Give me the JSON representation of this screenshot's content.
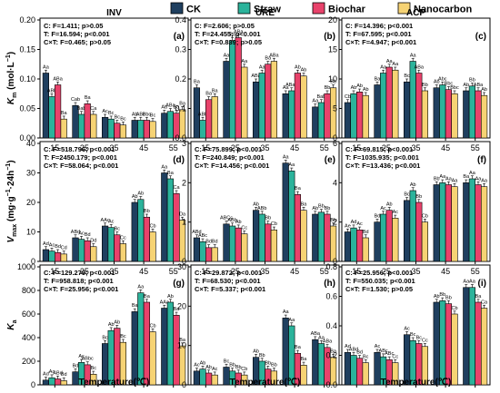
{
  "legend": [
    {
      "label": "CK",
      "color": "#1f3f5f"
    },
    {
      "label": "Straw",
      "color": "#2bb39b"
    },
    {
      "label": "Biochar",
      "color": "#e8426b"
    },
    {
      "label": "Nanocarbon",
      "color": "#f6d374"
    }
  ],
  "x_axis_title": "Temperature(℃)",
  "row_ylabels": [
    {
      "main": "K",
      "sub": "m",
      "rest": " (mol·L",
      "sup": "−1",
      "end": ")"
    },
    {
      "main": "V",
      "sub": "max",
      "rest": " (mg·g",
      "sup": "−1",
      "mid": "·24h",
      "sup2": "−1",
      "end": ")"
    },
    {
      "main": "K",
      "sub": "a",
      "rest": "",
      "sup": "",
      "end": ""
    }
  ],
  "chart_data": [
    {
      "type": "bar",
      "panel": "(a)",
      "title": "INV",
      "row": 0,
      "col": 0,
      "categories": [
        "15",
        "25",
        "35",
        "45",
        "55"
      ],
      "ylim": [
        0,
        0.2
      ],
      "yticks": [
        0.0,
        0.05,
        0.1,
        0.15,
        0.2
      ],
      "ytick_labels": [
        "0.00",
        "0.05",
        "0.10",
        "0.15",
        "0.20"
      ],
      "stats": [
        "C: F=1.411; p>0.05",
        "T: F=16.594; p<0.001",
        "C×T: F=0.465; p>0.05"
      ],
      "series": [
        {
          "name": "CK",
          "values": [
            0.11,
            0.055,
            0.035,
            0.03,
            0.042
          ]
        },
        {
          "name": "Straw",
          "values": [
            0.07,
            0.04,
            0.032,
            0.03,
            0.045
          ]
        },
        {
          "name": "Biochar",
          "values": [
            0.09,
            0.058,
            0.025,
            0.03,
            0.042
          ]
        },
        {
          "name": "Nanocarbon",
          "values": [
            0.032,
            0.04,
            0.022,
            0.028,
            0.048
          ]
        }
      ],
      "labels": [
        [
          "Aa",
          "Cab",
          "Ac",
          "Ab",
          "Ab"
        ],
        [
          "ABb",
          "Bab",
          "Bc",
          "ABc",
          "ABa"
        ],
        [
          "ABa",
          "Ba",
          "Bc",
          "Bbc",
          "Ba"
        ],
        [
          "Ba",
          "Ca",
          "Bc",
          "Bc",
          "Ba"
        ]
      ]
    },
    {
      "type": "bar",
      "panel": "(b)",
      "title": "URE",
      "row": 0,
      "col": 1,
      "categories": [
        "15",
        "25",
        "35",
        "45",
        "55"
      ],
      "ylim": [
        0,
        0.4
      ],
      "yticks": [
        0.0,
        0.1,
        0.2,
        0.3,
        0.4
      ],
      "ytick_labels": [
        "0.0",
        "0.1",
        "0.2",
        "0.3",
        "0.4"
      ],
      "stats": [
        "C: F=2.606; p>0.05",
        "T: F=24.455; p<0.001",
        "C×T: F=0.839; p>0.05"
      ],
      "series": [
        {
          "name": "CK",
          "values": [
            0.17,
            0.26,
            0.19,
            0.15,
            0.105
          ]
        },
        {
          "name": "Straw",
          "values": [
            0.06,
            0.33,
            0.22,
            0.16,
            0.12
          ]
        },
        {
          "name": "Biochar",
          "values": [
            0.13,
            0.34,
            0.25,
            0.22,
            0.15
          ]
        },
        {
          "name": "Nanocarbon",
          "values": [
            0.14,
            0.24,
            0.26,
            0.21,
            0.17
          ]
        }
      ],
      "labels": [
        [
          "Ba",
          "Aa",
          "ABa",
          "Aa",
          "Aa"
        ],
        [
          "ABb",
          "Ba",
          "Aa",
          "ABab",
          "Bab"
        ],
        [
          "Ba",
          "ABa",
          "Ba",
          "Ab",
          "Bb"
        ],
        [
          "Ba",
          "Aa",
          "ABa",
          "Ab",
          "Bb"
        ]
      ]
    },
    {
      "type": "bar",
      "panel": "(c)",
      "title": "ACP",
      "row": 0,
      "col": 2,
      "categories": [
        "15",
        "25",
        "35",
        "45",
        "55"
      ],
      "ylim": [
        0,
        20
      ],
      "yticks": [
        0,
        5,
        10,
        15,
        20
      ],
      "ytick_labels": [
        "0",
        "5",
        "10",
        "15",
        "20"
      ],
      "stats": [
        "C: F=14.396; p<0.001",
        "T: F=67.595; p<0.001",
        "C×T: F=4.947; p<0.001"
      ],
      "series": [
        {
          "name": "CK",
          "values": [
            6.0,
            9.0,
            9.5,
            8.5,
            8.0
          ]
        },
        {
          "name": "Straw",
          "values": [
            7.5,
            11.0,
            13.0,
            9.0,
            8.8
          ]
        },
        {
          "name": "Biochar",
          "values": [
            7.8,
            12.0,
            11.0,
            8.2,
            8.0
          ]
        },
        {
          "name": "Nanocarbon",
          "values": [
            7.2,
            11.5,
            8.0,
            7.5,
            7.2
          ]
        }
      ],
      "labels": [
        [
          "Cb",
          "Ba",
          "Bc",
          "Ab",
          "Ab"
        ],
        [
          "Ab",
          "Aa",
          "Aa",
          "Abc",
          "Bb"
        ],
        [
          "Ab",
          "Aa",
          "ABa",
          "Bbc",
          "ABa"
        ],
        [
          "Ab",
          "Aa",
          "Bb",
          "Bbc",
          "Ab"
        ]
      ]
    },
    {
      "type": "bar",
      "panel": "(d)",
      "title": "",
      "row": 1,
      "col": 0,
      "categories": [
        "15",
        "25",
        "35",
        "45",
        "55"
      ],
      "ylim": [
        0,
        40
      ],
      "yticks": [
        0,
        10,
        20,
        30,
        40
      ],
      "ytick_labels": [
        "0",
        "10",
        "20",
        "30",
        "40"
      ],
      "stats": [
        "C: F=518.796; p<0.001",
        "T: F=2450.179; p<0.001",
        "C×T: F=58.064; p<0.001"
      ],
      "series": [
        {
          "name": "CK",
          "values": [
            4.0,
            8.0,
            12.0,
            20.0,
            30.0
          ]
        },
        {
          "name": "Straw",
          "values": [
            3.5,
            7.5,
            11.5,
            21.0,
            28.0
          ]
        },
        {
          "name": "Biochar",
          "values": [
            3.0,
            7.0,
            9.0,
            15.0,
            23.0
          ]
        },
        {
          "name": "Nanocarbon",
          "values": [
            2.5,
            5.0,
            6.0,
            10.0,
            14.0
          ]
        }
      ],
      "labels": [
        [
          "Ad",
          "ABd",
          "AAc",
          "Ab",
          "Aa"
        ],
        [
          "Ac",
          "Ac",
          "Ac",
          "Ab",
          "Ba"
        ],
        [
          "Bd",
          "Bd",
          "Bc",
          "Bb",
          "Ca"
        ],
        [
          "Cd",
          "Dd",
          "Cc",
          "Cb",
          "Da"
        ]
      ]
    },
    {
      "type": "bar",
      "panel": "(e)",
      "title": "",
      "row": 1,
      "col": 1,
      "categories": [
        "15",
        "25",
        "35",
        "45",
        "55"
      ],
      "ylim": [
        0,
        3
      ],
      "yticks": [
        0,
        1,
        2,
        3
      ],
      "ytick_labels": [
        "0",
        "1",
        "2",
        "3"
      ],
      "stats": [
        "C: F=75.899; p<0.001",
        "T: F=240.849; p<0.001",
        "C×T: F=14.456; p<0.001"
      ],
      "series": [
        {
          "name": "CK",
          "values": [
            0.6,
            0.95,
            1.3,
            2.5,
            1.2
          ]
        },
        {
          "name": "Straw",
          "values": [
            0.5,
            0.9,
            1.2,
            2.3,
            1.25
          ]
        },
        {
          "name": "Biochar",
          "values": [
            0.35,
            0.85,
            0.95,
            1.7,
            1.2
          ]
        },
        {
          "name": "Nanocarbon",
          "values": [
            0.35,
            0.7,
            0.8,
            1.3,
            0.9
          ]
        }
      ],
      "labels": [
        [
          "ABd",
          "ABCc",
          "Ab",
          "Aa",
          "Ab"
        ],
        [
          "ABc",
          "ABb",
          "ABb",
          "Aa",
          "Bb"
        ],
        [
          "Bd",
          "Ab",
          "Bb",
          "Ba",
          "Bb"
        ],
        [
          "Bd",
          "Cc",
          "Cb",
          "Ba",
          "Bb"
        ]
      ]
    },
    {
      "type": "bar",
      "panel": "(f)",
      "title": "",
      "row": 1,
      "col": 2,
      "categories": [
        "15",
        "25",
        "35",
        "45",
        "55"
      ],
      "ylim": [
        0,
        6
      ],
      "yticks": [
        0,
        2,
        4,
        6
      ],
      "ytick_labels": [
        "0",
        "2",
        "4",
        "6"
      ],
      "stats": [
        "C: F=69.815; p<0.001",
        "T: F=1035.935; p<0.001",
        "C×T: F=13.436; p<0.001"
      ],
      "series": [
        {
          "name": "CK",
          "values": [
            1.5,
            2.0,
            3.1,
            3.9,
            4.0
          ]
        },
        {
          "name": "Straw",
          "values": [
            1.7,
            2.4,
            3.6,
            4.0,
            4.2
          ]
        },
        {
          "name": "Biochar",
          "values": [
            1.6,
            2.6,
            3.0,
            3.9,
            3.9
          ]
        },
        {
          "name": "Nanocarbon",
          "values": [
            1.2,
            2.2,
            2.0,
            3.8,
            3.8
          ]
        }
      ],
      "labels": [
        [
          "Ae",
          "Bd",
          "Bc",
          "Bb",
          "Ba"
        ],
        [
          "Ad",
          "Ac",
          "Ab",
          "Aa",
          "Aa"
        ],
        [
          "Ac",
          "Ab",
          "Bb",
          "Aa",
          "Aa"
        ],
        [
          "Bd",
          "Ac",
          "Cb",
          "Aa",
          "Aa"
        ]
      ]
    },
    {
      "type": "bar",
      "panel": "(g)",
      "title": "",
      "row": 2,
      "col": 0,
      "categories": [
        "15",
        "25",
        "35",
        "45",
        "55"
      ],
      "ylim": [
        0,
        1000
      ],
      "yticks": [
        0,
        200,
        400,
        600,
        800,
        1000
      ],
      "ytick_labels": [
        "0",
        "200",
        "400",
        "600",
        "800",
        "1000"
      ],
      "stats": [
        "C: F=129.279; p<0.001",
        "T: F=958.818; p<0.001",
        "C×T: F=25.956; p<0.001"
      ],
      "series": [
        {
          "name": "CK",
          "values": [
            40,
            110,
            350,
            620,
            650
          ]
        },
        {
          "name": "Straw",
          "values": [
            60,
            190,
            460,
            780,
            700
          ]
        },
        {
          "name": "Biochar",
          "values": [
            50,
            170,
            480,
            700,
            590
          ]
        },
        {
          "name": "Nanocarbon",
          "values": [
            35,
            90,
            360,
            450,
            330
          ]
        }
      ],
      "labels": [
        [
          "Ad",
          "Bd",
          "Bc",
          "Ba",
          "AAa"
        ],
        [
          "Ac",
          "Ac",
          "Ab",
          "Aa",
          "Ab"
        ],
        [
          "ABd",
          "ABbc",
          "Ab",
          "Ba",
          "Ba"
        ],
        [
          "Bd",
          "Bc",
          "Bc",
          "Cb",
          "Ba"
        ]
      ]
    },
    {
      "type": "bar",
      "panel": "(h)",
      "title": "",
      "row": 2,
      "col": 1,
      "categories": [
        "15",
        "25",
        "35",
        "45",
        "55"
      ],
      "ylim": [
        0,
        30
      ],
      "yticks": [
        0,
        10,
        20,
        30
      ],
      "ytick_labels": [
        "0",
        "10",
        "20",
        "30"
      ],
      "stats": [
        "C: F=29.872; p<0.001",
        "T: F=68.530; p<0.001",
        "C×T: F=5.337; p<0.001"
      ],
      "series": [
        {
          "name": "CK",
          "values": [
            3.5,
            4.5,
            7.0,
            17.0,
            11.5
          ]
        },
        {
          "name": "Straw",
          "values": [
            4.0,
            3.5,
            6.0,
            15.0,
            10.5
          ]
        },
        {
          "name": "Biochar",
          "values": [
            3.0,
            3.0,
            4.0,
            8.0,
            9.5
          ]
        },
        {
          "name": "Nanocarbon",
          "values": [
            2.5,
            2.5,
            3.5,
            5.0,
            7.0
          ]
        }
      ],
      "labels": [
        [
          "Ac",
          "Bc",
          "Ab",
          "Aa",
          "ABa"
        ],
        [
          "Ab",
          "Bb",
          "Bb",
          "Aa",
          "Aa"
        ],
        [
          "Ab",
          "Bb",
          "Bb",
          "Ba",
          "ABa"
        ],
        [
          "Ac",
          "Cb",
          "Bb",
          "Ba",
          "Ba"
        ]
      ]
    },
    {
      "type": "bar",
      "panel": "(i)",
      "title": "",
      "row": 2,
      "col": 2,
      "categories": [
        "15",
        "25",
        "35",
        "45",
        "55"
      ],
      "ylim": [
        0,
        0.8
      ],
      "yticks": [
        0.0,
        0.2,
        0.4,
        0.6,
        0.8
      ],
      "ytick_labels": [
        "0.0",
        "0.2",
        "0.4",
        "0.6",
        "0.8"
      ],
      "stats": [
        "C: F=25.956; p<0.001",
        "T: F=550.035; p<0.001",
        "C×T: F=1.530; p>0.05"
      ],
      "series": [
        {
          "name": "CK",
          "values": [
            0.22,
            0.22,
            0.34,
            0.56,
            0.66
          ]
        },
        {
          "name": "Straw",
          "values": [
            0.2,
            0.19,
            0.3,
            0.57,
            0.66
          ]
        },
        {
          "name": "Biochar",
          "values": [
            0.18,
            0.17,
            0.28,
            0.55,
            0.56
          ]
        },
        {
          "name": "Nanocarbon",
          "values": [
            0.15,
            0.15,
            0.26,
            0.48,
            0.52
          ]
        }
      ],
      "labels": [
        [
          "Ad",
          "Ac",
          "Ac",
          "Ab",
          "Aa"
        ],
        [
          "ABd",
          "ABc",
          "Bc",
          "Bb",
          "Aa"
        ],
        [
          "Bd",
          "ABc",
          "Bc",
          "Bb",
          "Ba"
        ],
        [
          "Bc",
          "Cc",
          "Cc",
          "Cb",
          "Ca"
        ]
      ]
    }
  ]
}
